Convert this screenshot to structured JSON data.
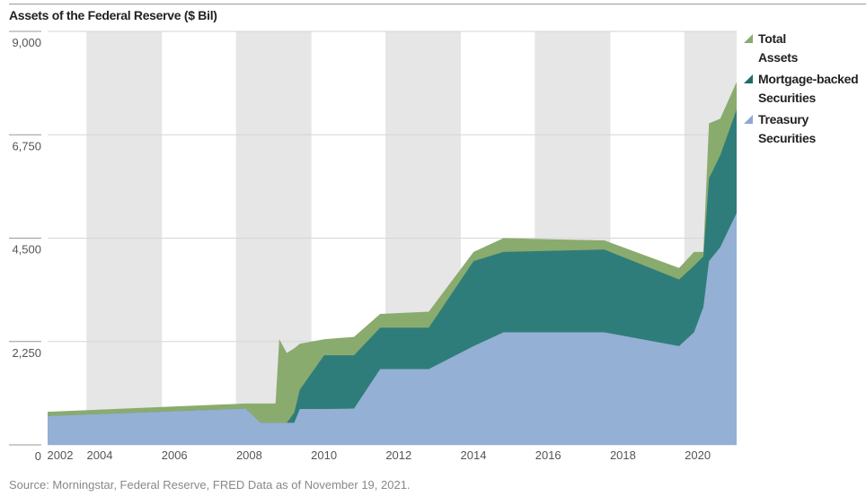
{
  "chart_data": {
    "type": "area",
    "title": "Assets of the Federal Reserve ($ Bil)",
    "ylim": [
      0,
      9000
    ],
    "yticks": [
      "9,000",
      "6,750",
      "4,500",
      "2,250",
      "0"
    ],
    "ytick_values": [
      9000,
      6750,
      4500,
      2250,
      0
    ],
    "xticks": [
      "2002",
      "2004",
      "2006",
      "2008",
      "2010",
      "2012",
      "2014",
      "2016",
      "2018",
      "2020"
    ],
    "xlim": [
      2002.6,
      2021.04
    ],
    "x": [
      2002.6,
      2007.9,
      2008.3,
      2008.7,
      2008.8,
      2009.0,
      2009.2,
      2009.35,
      2010.0,
      2010.8,
      2011.5,
      2012.8,
      2014.0,
      2014.8,
      2017.5,
      2019.5,
      2019.9,
      2020.15,
      2020.3,
      2020.6,
      2021.04
    ],
    "series": [
      {
        "name": "Total Assets",
        "name_lines": [
          "Total",
          "Assets"
        ],
        "color": "#8aab6e",
        "values": [
          720,
          900,
          900,
          900,
          2300,
          2000,
          2100,
          2200,
          2300,
          2350,
          2850,
          2900,
          4200,
          4500,
          4450,
          3850,
          4200,
          4200,
          7000,
          7100,
          7900
        ]
      },
      {
        "name": "Mortgage-backed Securities",
        "name_lines": [
          "Mortgage-backed",
          "Securities"
        ],
        "color": "#2f7d7a",
        "values": [
          0,
          0,
          0,
          0,
          0,
          0,
          220,
          420,
          1170,
          1160,
          900,
          900,
          1850,
          1750,
          1800,
          1450,
          1450,
          1100,
          1800,
          2000,
          2250
        ]
      },
      {
        "name": "Treasury Securities",
        "name_lines": [
          "Treasury",
          "Securities"
        ],
        "color": "#94b0d4",
        "values": [
          630,
          790,
          480,
          480,
          480,
          480,
          480,
          780,
          780,
          790,
          1650,
          1650,
          2150,
          2450,
          2450,
          2150,
          2450,
          3000,
          4000,
          4300,
          5050
        ]
      }
    ],
    "legend_position": "right",
    "grid": true,
    "source": "Source: Morningstar, Federal Reserve, FRED Data as of November 19, 2021."
  }
}
